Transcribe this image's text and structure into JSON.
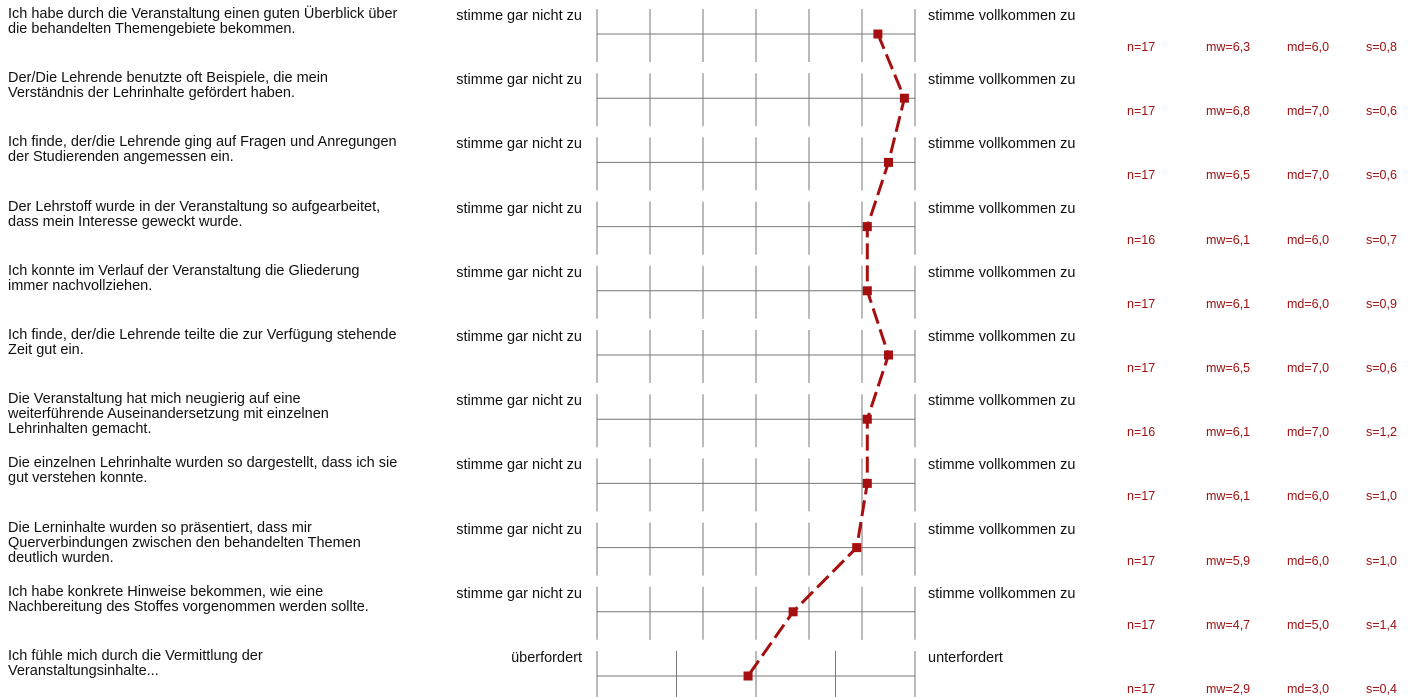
{
  "chart_data": {
    "type": "line",
    "scale": [
      1,
      7
    ],
    "line_color": "#a50f0f",
    "rows": [
      {
        "question": "Ich habe durch die Veranstaltung einen guten Überblick über die behandelten Themengebiete bekommen.",
        "left": "stimme gar nicht zu",
        "right": "stimme vollkommen zu",
        "n": "n=17",
        "mw": "mw=6,3",
        "md": "md=6,0",
        "s": "s=0,8",
        "value": 6.3
      },
      {
        "question": "Der/Die Lehrende benutzte oft Beispiele, die mein Verständnis der Lehrinhalte gefördert haben.",
        "left": "stimme gar nicht zu",
        "right": "stimme vollkommen zu",
        "n": "n=17",
        "mw": "mw=6,8",
        "md": "md=7,0",
        "s": "s=0,6",
        "value": 6.8
      },
      {
        "question": "Ich finde, der/die Lehrende ging auf Fragen und Anregungen der Studierenden angemessen ein.",
        "left": "stimme gar nicht zu",
        "right": "stimme vollkommen zu",
        "n": "n=17",
        "mw": "mw=6,5",
        "md": "md=7,0",
        "s": "s=0,6",
        "value": 6.5
      },
      {
        "question": "Der Lehrstoff wurde in der Veranstaltung so aufgearbeitet, dass mein Interesse geweckt wurde.",
        "left": "stimme gar nicht zu",
        "right": "stimme vollkommen zu",
        "n": "n=16",
        "mw": "mw=6,1",
        "md": "md=6,0",
        "s": "s=0,7",
        "value": 6.1
      },
      {
        "question": "Ich konnte im Verlauf der Veranstaltung die Gliederung immer nachvollziehen.",
        "left": "stimme gar nicht zu",
        "right": "stimme vollkommen zu",
        "n": "n=17",
        "mw": "mw=6,1",
        "md": "md=6,0",
        "s": "s=0,9",
        "value": 6.1
      },
      {
        "question": "Ich finde, der/die Lehrende teilte die zur Verfügung stehende Zeit gut ein.",
        "left": "stimme gar nicht zu",
        "right": "stimme vollkommen zu",
        "n": "n=17",
        "mw": "mw=6,5",
        "md": "md=7,0",
        "s": "s=0,6",
        "value": 6.5
      },
      {
        "question": "Die Veranstaltung hat mich neugierig auf eine weiterführende Auseinandersetzung mit einzelnen Lehrinhalten gemacht.",
        "left": "stimme gar nicht zu",
        "right": "stimme vollkommen zu",
        "n": "n=16",
        "mw": "mw=6,1",
        "md": "md=7,0",
        "s": "s=1,2",
        "value": 6.1
      },
      {
        "question": "Die einzelnen Lehrinhalte wurden so dargestellt, dass ich sie gut verstehen konnte.",
        "left": "stimme gar nicht zu",
        "right": "stimme vollkommen zu",
        "n": "n=17",
        "mw": "mw=6,1",
        "md": "md=6,0",
        "s": "s=1,0",
        "value": 6.1
      },
      {
        "question": "Die Lerninhalte wurden so präsentiert, dass mir Querverbindungen zwischen den behandelten Themen deutlich wurden.",
        "left": "stimme gar nicht zu",
        "right": "stimme vollkommen zu",
        "n": "n=17",
        "mw": "mw=5,9",
        "md": "md=6,0",
        "s": "s=1,0",
        "value": 5.9
      },
      {
        "question": "Ich habe konkrete Hinweise bekommen, wie eine Nachbereitung des Stoffes vorgenommen werden sollte.",
        "left": "stimme gar nicht zu",
        "right": "stimme vollkommen zu",
        "n": "n=17",
        "mw": "mw=4,7",
        "md": "md=5,0",
        "s": "s=1,4",
        "value": 4.7
      },
      {
        "question": "Ich fühle mich durch die Vermittlung der Veranstaltungsinhalte...",
        "left": "überfordert",
        "right": "unterfordert",
        "n": "n=17",
        "mw": "mw=2,9",
        "md": "md=3,0",
        "s": "s=0,4",
        "value": 2.9,
        "scale": [
          1,
          5
        ]
      }
    ]
  }
}
